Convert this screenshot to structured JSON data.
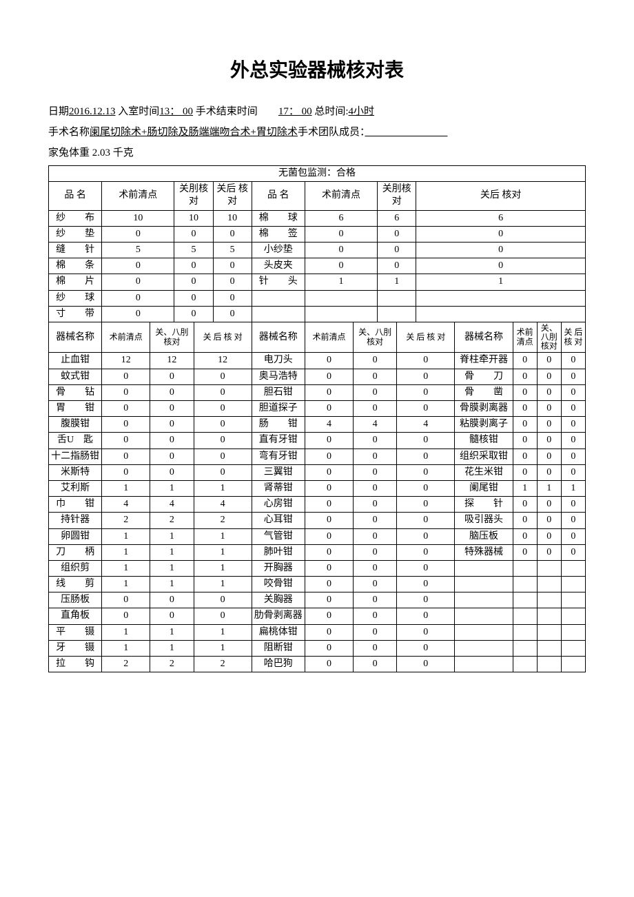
{
  "title": "外总实验器械核对表",
  "meta": {
    "date_label": "日期",
    "date": "2016.12.13",
    "enter_label": "入室时间",
    "enter": "13： 00",
    "end_label": "手术结束时间",
    "end": "17： 00",
    "total_label": "总时间:",
    "total": "4小时",
    "surgery_label": "手术名称",
    "surgery": "阑尾切除术+肠切除及肠端端吻合术+胃切除术",
    "team_label": "手术团队成员：",
    "team": "",
    "weight_label": "家兔体重",
    "weight": "2.03 千克"
  },
  "monitor": "无菌包监测：合格",
  "top_headers": {
    "name": "品 名",
    "pre": "术前清点",
    "close1": "关刖核对",
    "close2": "关后 核对"
  },
  "top_left": [
    {
      "n": "纱　　布",
      "a": "10",
      "b": "10",
      "c": "10"
    },
    {
      "n": "纱　　垫",
      "a": "0",
      "b": "0",
      "c": "0"
    },
    {
      "n": "缝　　针",
      "a": "5",
      "b": "5",
      "c": "5"
    },
    {
      "n": "棉　　条",
      "a": "0",
      "b": "0",
      "c": "0"
    },
    {
      "n": "棉　　片",
      "a": "0",
      "b": "0",
      "c": "0"
    },
    {
      "n": "纱　　球",
      "a": "0",
      "b": "0",
      "c": "0"
    },
    {
      "n": "寸　　带",
      "a": "0",
      "b": "0",
      "c": "0"
    }
  ],
  "top_right": [
    {
      "n": "棉　　球",
      "a": "6",
      "b": "6",
      "c": "6"
    },
    {
      "n": "棉　　签",
      "a": "0",
      "b": "0",
      "c": "0"
    },
    {
      "n": "小纱垫",
      "a": "0",
      "b": "0",
      "c": "0"
    },
    {
      "n": "头皮夹",
      "a": "0",
      "b": "0",
      "c": "0"
    },
    {
      "n": "针　　头",
      "a": "1",
      "b": "1",
      "c": "1"
    },
    {
      "n": "",
      "a": "",
      "b": "",
      "c": ""
    },
    {
      "n": "",
      "a": "",
      "b": "",
      "c": ""
    }
  ],
  "instr_headers": {
    "name": "器械名称",
    "pre": "术前清点",
    "c1": "关、八刖核对",
    "c2": "关 后 核 对"
  },
  "instr": [
    [
      {
        "n": "止血钳",
        "a": "12",
        "b": "12",
        "c": "12"
      },
      {
        "n": "电刀头",
        "a": "0",
        "b": "0",
        "c": "0"
      },
      {
        "n": "脊柱牵开器",
        "a": "0",
        "b": "0",
        "c": "0"
      }
    ],
    [
      {
        "n": "蚊式钳",
        "a": "0",
        "b": "0",
        "c": "0"
      },
      {
        "n": "奥马浩特",
        "a": "0",
        "b": "0",
        "c": "0"
      },
      {
        "n": "骨　　刀",
        "a": "0",
        "b": "0",
        "c": "0"
      }
    ],
    [
      {
        "n": "骨　　钻",
        "a": "0",
        "b": "0",
        "c": "0"
      },
      {
        "n": "胆石钳",
        "a": "0",
        "b": "0",
        "c": "0"
      },
      {
        "n": "骨　　凿",
        "a": "0",
        "b": "0",
        "c": "0"
      }
    ],
    [
      {
        "n": "胃　　钳",
        "a": "0",
        "b": "0",
        "c": "0"
      },
      {
        "n": "胆道探子",
        "a": "0",
        "b": "0",
        "c": "0"
      },
      {
        "n": "骨膜剥离器",
        "a": "0",
        "b": "0",
        "c": "0"
      }
    ],
    [
      {
        "n": "腹膜钳",
        "a": "0",
        "b": "0",
        "c": "0"
      },
      {
        "n": "肠　　钳",
        "a": "4",
        "b": "4",
        "c": "4"
      },
      {
        "n": "粘膜剥离子",
        "a": "0",
        "b": "0",
        "c": "0"
      }
    ],
    [
      {
        "n": "舌U　匙",
        "a": "0",
        "b": "0",
        "c": "0"
      },
      {
        "n": "直有牙钳",
        "a": "0",
        "b": "0",
        "c": "0"
      },
      {
        "n": "髓核钳",
        "a": "0",
        "b": "0",
        "c": "0"
      }
    ],
    [
      {
        "n": "十二指肠钳",
        "a": "0",
        "b": "0",
        "c": "0"
      },
      {
        "n": "弯有牙钳",
        "a": "0",
        "b": "0",
        "c": "0"
      },
      {
        "n": "组织采取钳",
        "a": "0",
        "b": "0",
        "c": "0"
      }
    ],
    [
      {
        "n": "米斯特",
        "a": "0",
        "b": "0",
        "c": "0"
      },
      {
        "n": "三翼钳",
        "a": "0",
        "b": "0",
        "c": "0"
      },
      {
        "n": "花生米钳",
        "a": "0",
        "b": "0",
        "c": "0"
      }
    ],
    [
      {
        "n": "艾利斯",
        "a": "1",
        "b": "1",
        "c": "1"
      },
      {
        "n": "肾蒂钳",
        "a": "0",
        "b": "0",
        "c": "0"
      },
      {
        "n": "阑尾钳",
        "a": "1",
        "b": "1",
        "c": "1"
      }
    ],
    [
      {
        "n": "巾　　钳",
        "a": "4",
        "b": "4",
        "c": "4"
      },
      {
        "n": "心房钳",
        "a": "0",
        "b": "0",
        "c": "0"
      },
      {
        "n": "探　　针",
        "a": "0",
        "b": "0",
        "c": "0"
      }
    ],
    [
      {
        "n": "持针器",
        "a": "2",
        "b": "2",
        "c": "2"
      },
      {
        "n": "心耳钳",
        "a": "0",
        "b": "0",
        "c": "0"
      },
      {
        "n": "吸引器头",
        "a": "0",
        "b": "0",
        "c": "0"
      }
    ],
    [
      {
        "n": "卵圆钳",
        "a": "1",
        "b": "1",
        "c": "1"
      },
      {
        "n": "气管钳",
        "a": "0",
        "b": "0",
        "c": "0"
      },
      {
        "n": "脑压板",
        "a": "0",
        "b": "0",
        "c": "0"
      }
    ],
    [
      {
        "n": "刀　　柄",
        "a": "1",
        "b": "1",
        "c": "1"
      },
      {
        "n": "肺叶钳",
        "a": "0",
        "b": "0",
        "c": "0"
      },
      {
        "n": "特殊器械",
        "a": "0",
        "b": "0",
        "c": "0"
      }
    ],
    [
      {
        "n": "组织剪",
        "a": "1",
        "b": "1",
        "c": "1"
      },
      {
        "n": "开胸器",
        "a": "0",
        "b": "0",
        "c": "0"
      },
      {
        "n": "",
        "a": "",
        "b": "",
        "c": ""
      }
    ],
    [
      {
        "n": "线　　剪",
        "a": "1",
        "b": "1",
        "c": "1"
      },
      {
        "n": "咬骨钳",
        "a": "0",
        "b": "0",
        "c": "0"
      },
      {
        "n": "",
        "a": "",
        "b": "",
        "c": ""
      }
    ],
    [
      {
        "n": "压肠板",
        "a": "0",
        "b": "0",
        "c": "0"
      },
      {
        "n": "关胸器",
        "a": "0",
        "b": "0",
        "c": "0"
      },
      {
        "n": "",
        "a": "",
        "b": "",
        "c": ""
      }
    ],
    [
      {
        "n": "直角板",
        "a": "0",
        "b": "0",
        "c": "0"
      },
      {
        "n": "肋骨剥离器",
        "a": "0",
        "b": "0",
        "c": "0"
      },
      {
        "n": "",
        "a": "",
        "b": "",
        "c": ""
      }
    ],
    [
      {
        "n": "平　　镊",
        "a": "1",
        "b": "1",
        "c": "1"
      },
      {
        "n": "扁桃体钳",
        "a": "0",
        "b": "0",
        "c": "0"
      },
      {
        "n": "",
        "a": "",
        "b": "",
        "c": ""
      }
    ],
    [
      {
        "n": "牙　　镊",
        "a": "1",
        "b": "1",
        "c": "1"
      },
      {
        "n": "阻断钳",
        "a": "0",
        "b": "0",
        "c": "0"
      },
      {
        "n": "",
        "a": "",
        "b": "",
        "c": ""
      }
    ],
    [
      {
        "n": "拉　　钩",
        "a": "2",
        "b": "2",
        "c": "2"
      },
      {
        "n": "哈巴狗",
        "a": "0",
        "b": "0",
        "c": "0"
      },
      {
        "n": "",
        "a": "",
        "b": "",
        "c": ""
      }
    ]
  ]
}
